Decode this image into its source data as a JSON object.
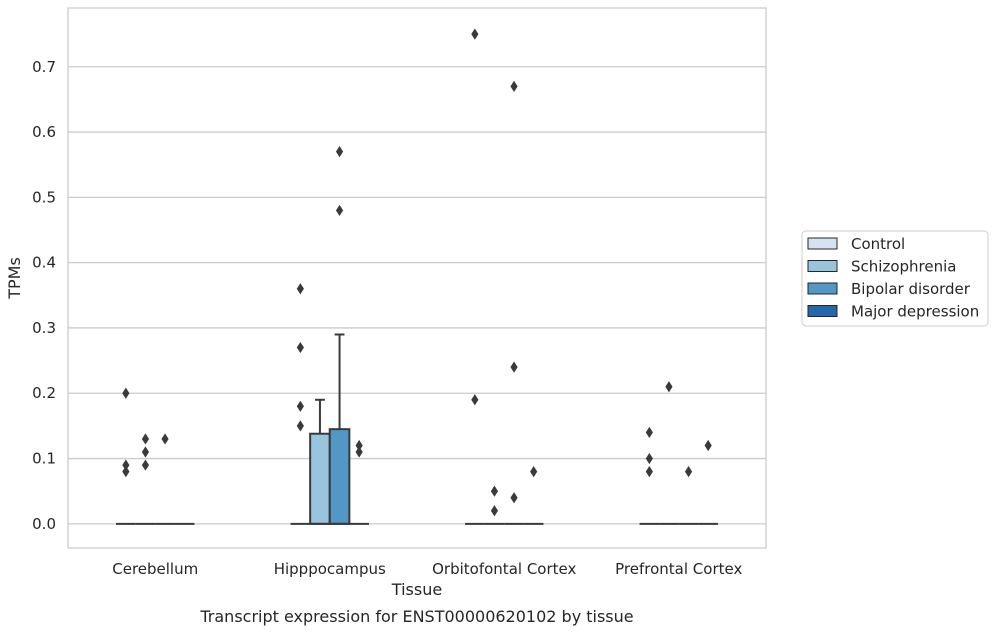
{
  "chart_data": {
    "type": "box",
    "title": "Transcript expression for ENST00000620102 by tissue",
    "xlabel": "Tissue",
    "ylabel": "TPMs",
    "ylim": [
      -0.037,
      0.79
    ],
    "yticks": [
      0.0,
      0.1,
      0.2,
      0.3,
      0.4,
      0.5,
      0.6,
      0.7
    ],
    "ytick_labels": [
      "0.0",
      "0.1",
      "0.2",
      "0.3",
      "0.4",
      "0.5",
      "0.6",
      "0.7"
    ],
    "grid": "horizontal",
    "legend_position": "right",
    "categories": [
      "Cerebellum",
      "Hipppocampus",
      "Orbitofontal Cortex",
      "Prefrontal Cortex"
    ],
    "series": [
      {
        "name": "Control",
        "color": "#d4e3f1"
      },
      {
        "name": "Schizophrenia",
        "color": "#99c4dd"
      },
      {
        "name": "Bipolar disorder",
        "color": "#5297c6"
      },
      {
        "name": "Major depression",
        "color": "#2567a9"
      }
    ],
    "boxes": [
      [
        {
          "q1": 0,
          "median": 0,
          "q3": 0,
          "whisker_low": 0,
          "whisker_high": 0,
          "outliers": [
            0.08,
            0.09,
            0.2
          ]
        },
        {
          "q1": 0,
          "median": 0,
          "q3": 0,
          "whisker_low": 0,
          "whisker_high": 0,
          "outliers": [
            0.09,
            0.11,
            0.13
          ]
        },
        {
          "q1": 0,
          "median": 0,
          "q3": 0,
          "whisker_low": 0,
          "whisker_high": 0,
          "outliers": [
            0.13
          ]
        },
        {
          "q1": 0,
          "median": 0,
          "q3": 0,
          "whisker_low": 0,
          "whisker_high": 0,
          "outliers": []
        }
      ],
      [
        {
          "q1": 0,
          "median": 0,
          "q3": 0,
          "whisker_low": 0,
          "whisker_high": 0,
          "outliers": [
            0.15,
            0.18,
            0.27,
            0.36
          ]
        },
        {
          "q1": 0,
          "median": 0,
          "q3": 0.138,
          "whisker_low": 0,
          "whisker_high": 0.19,
          "outliers": []
        },
        {
          "q1": 0,
          "median": 0,
          "q3": 0.145,
          "whisker_low": 0,
          "whisker_high": 0.29,
          "outliers": [
            0.48,
            0.57
          ]
        },
        {
          "q1": 0,
          "median": 0,
          "q3": 0,
          "whisker_low": 0,
          "whisker_high": 0,
          "outliers": [
            0.11,
            0.12
          ]
        }
      ],
      [
        {
          "q1": 0,
          "median": 0,
          "q3": 0,
          "whisker_low": 0,
          "whisker_high": 0,
          "outliers": [
            0.19,
            0.75
          ]
        },
        {
          "q1": 0,
          "median": 0,
          "q3": 0,
          "whisker_low": 0,
          "whisker_high": 0,
          "outliers": [
            0.02,
            0.05
          ]
        },
        {
          "q1": 0,
          "median": 0,
          "q3": 0,
          "whisker_low": 0,
          "whisker_high": 0,
          "outliers": [
            0.04,
            0.24,
            0.67
          ]
        },
        {
          "q1": 0,
          "median": 0,
          "q3": 0,
          "whisker_low": 0,
          "whisker_high": 0,
          "outliers": [
            0.08
          ]
        }
      ],
      [
        {
          "q1": 0,
          "median": 0,
          "q3": 0,
          "whisker_low": 0,
          "whisker_high": 0,
          "outliers": [
            0.08,
            0.1,
            0.14
          ]
        },
        {
          "q1": 0,
          "median": 0,
          "q3": 0,
          "whisker_low": 0,
          "whisker_high": 0,
          "outliers": [
            0.21
          ]
        },
        {
          "q1": 0,
          "median": 0,
          "q3": 0,
          "whisker_low": 0,
          "whisker_high": 0,
          "outliers": [
            0.08
          ]
        },
        {
          "q1": 0,
          "median": 0,
          "q3": 0,
          "whisker_low": 0,
          "whisker_high": 0,
          "outliers": [
            0.12
          ]
        }
      ]
    ]
  }
}
